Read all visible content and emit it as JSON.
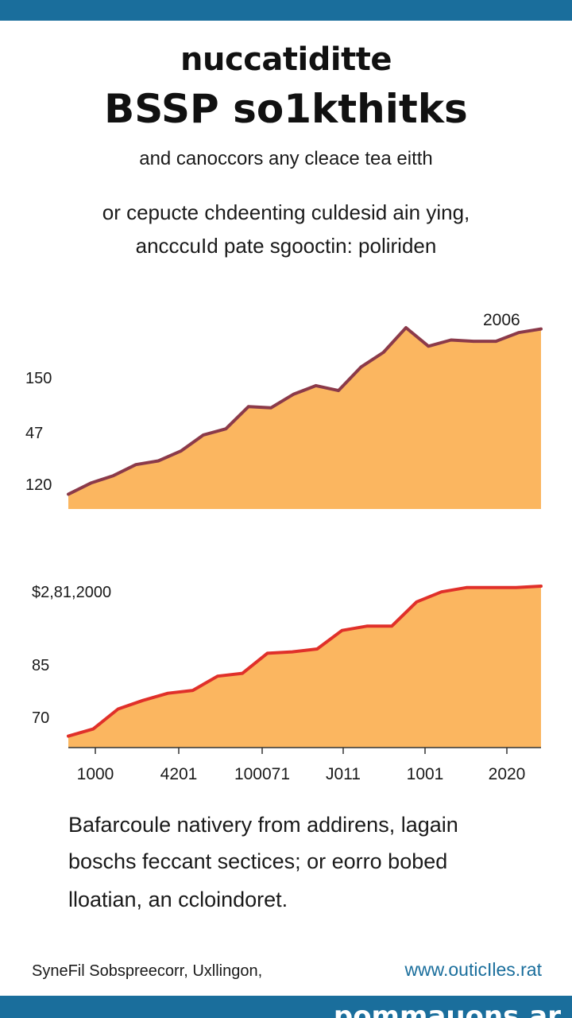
{
  "header": {
    "title_line1": "nuccatiditte",
    "title_line2": "BSSP so1kthitks",
    "subtitle_line1": "and canoccors any cleace tea eitth",
    "subtitle_line2": "or cepucte chdeenting culdesid ain ying,",
    "subtitle_line3": "ancccuId pate sgooctin: poliriden"
  },
  "chart_data": [
    {
      "type": "area",
      "annotation": "2006",
      "y_ticks": [
        "150",
        "47",
        "120"
      ],
      "series": [
        {
          "line_color": "#8b3a4a",
          "fill_color": "#fbb660",
          "values": [
            12,
            21,
            27,
            36,
            39,
            47,
            60,
            65,
            83,
            82,
            93,
            100,
            96,
            115,
            127,
            147,
            132,
            137,
            136,
            136,
            143,
            146
          ]
        }
      ]
    },
    {
      "type": "area",
      "y_ticks": [
        "$2,81,2000",
        "85",
        "70"
      ],
      "x_ticks": [
        "1000",
        "4201",
        "100071",
        "J011",
        "1001",
        "2020"
      ],
      "series": [
        {
          "line_color": "#e0302a",
          "fill_color": "#fbb660",
          "values": [
            8,
            13,
            27,
            33,
            38,
            40,
            50,
            52,
            66,
            67,
            69,
            82,
            85,
            85,
            102,
            109,
            112,
            112,
            112,
            113
          ]
        }
      ]
    }
  ],
  "description": {
    "line1": "Bafarcoule nativery from addirens, lagain",
    "line2": "boschs feccant sectices; or eorro bobed",
    "line3": "lloatian, an ccloindoret."
  },
  "footer": {
    "left": "SyneFil Sobspreecorr, Uxllingon,",
    "right": "www.outicIles.rat",
    "bottom_banner": "pommauons.ar"
  }
}
